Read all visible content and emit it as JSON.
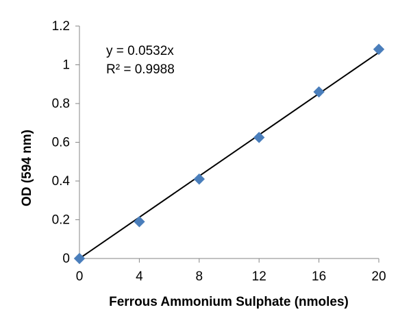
{
  "chart_data": {
    "type": "scatter",
    "title": "",
    "xlabel": "Ferrous Ammonium Sulphate (nmoles)",
    "ylabel": "OD (594 nm)",
    "xlim": [
      0,
      20
    ],
    "ylim": [
      0,
      1.2
    ],
    "x_ticks": [
      0,
      4,
      8,
      12,
      16,
      20
    ],
    "x_tick_labels": [
      "0",
      "4",
      "8",
      "12",
      "16",
      "20"
    ],
    "y_ticks": [
      0,
      0.2,
      0.4,
      0.6,
      0.8,
      1,
      1.2
    ],
    "y_tick_labels": [
      "0",
      "0.2",
      "0.4",
      "0.6",
      "0.8",
      "1",
      "1.2"
    ],
    "grid": false,
    "series": [
      {
        "x": [
          0,
          4,
          8,
          12,
          16,
          20
        ],
        "y": [
          0,
          0.19,
          0.41,
          0.625,
          0.86,
          1.08
        ],
        "marker": "diamond",
        "color": "#4a7ebb"
      }
    ],
    "trendline": {
      "type": "linear",
      "slope": 0.0532,
      "intercept": 0,
      "color": "#000000"
    },
    "annotations": [
      "y = 0.0532x",
      "R² = 0.9988"
    ]
  }
}
